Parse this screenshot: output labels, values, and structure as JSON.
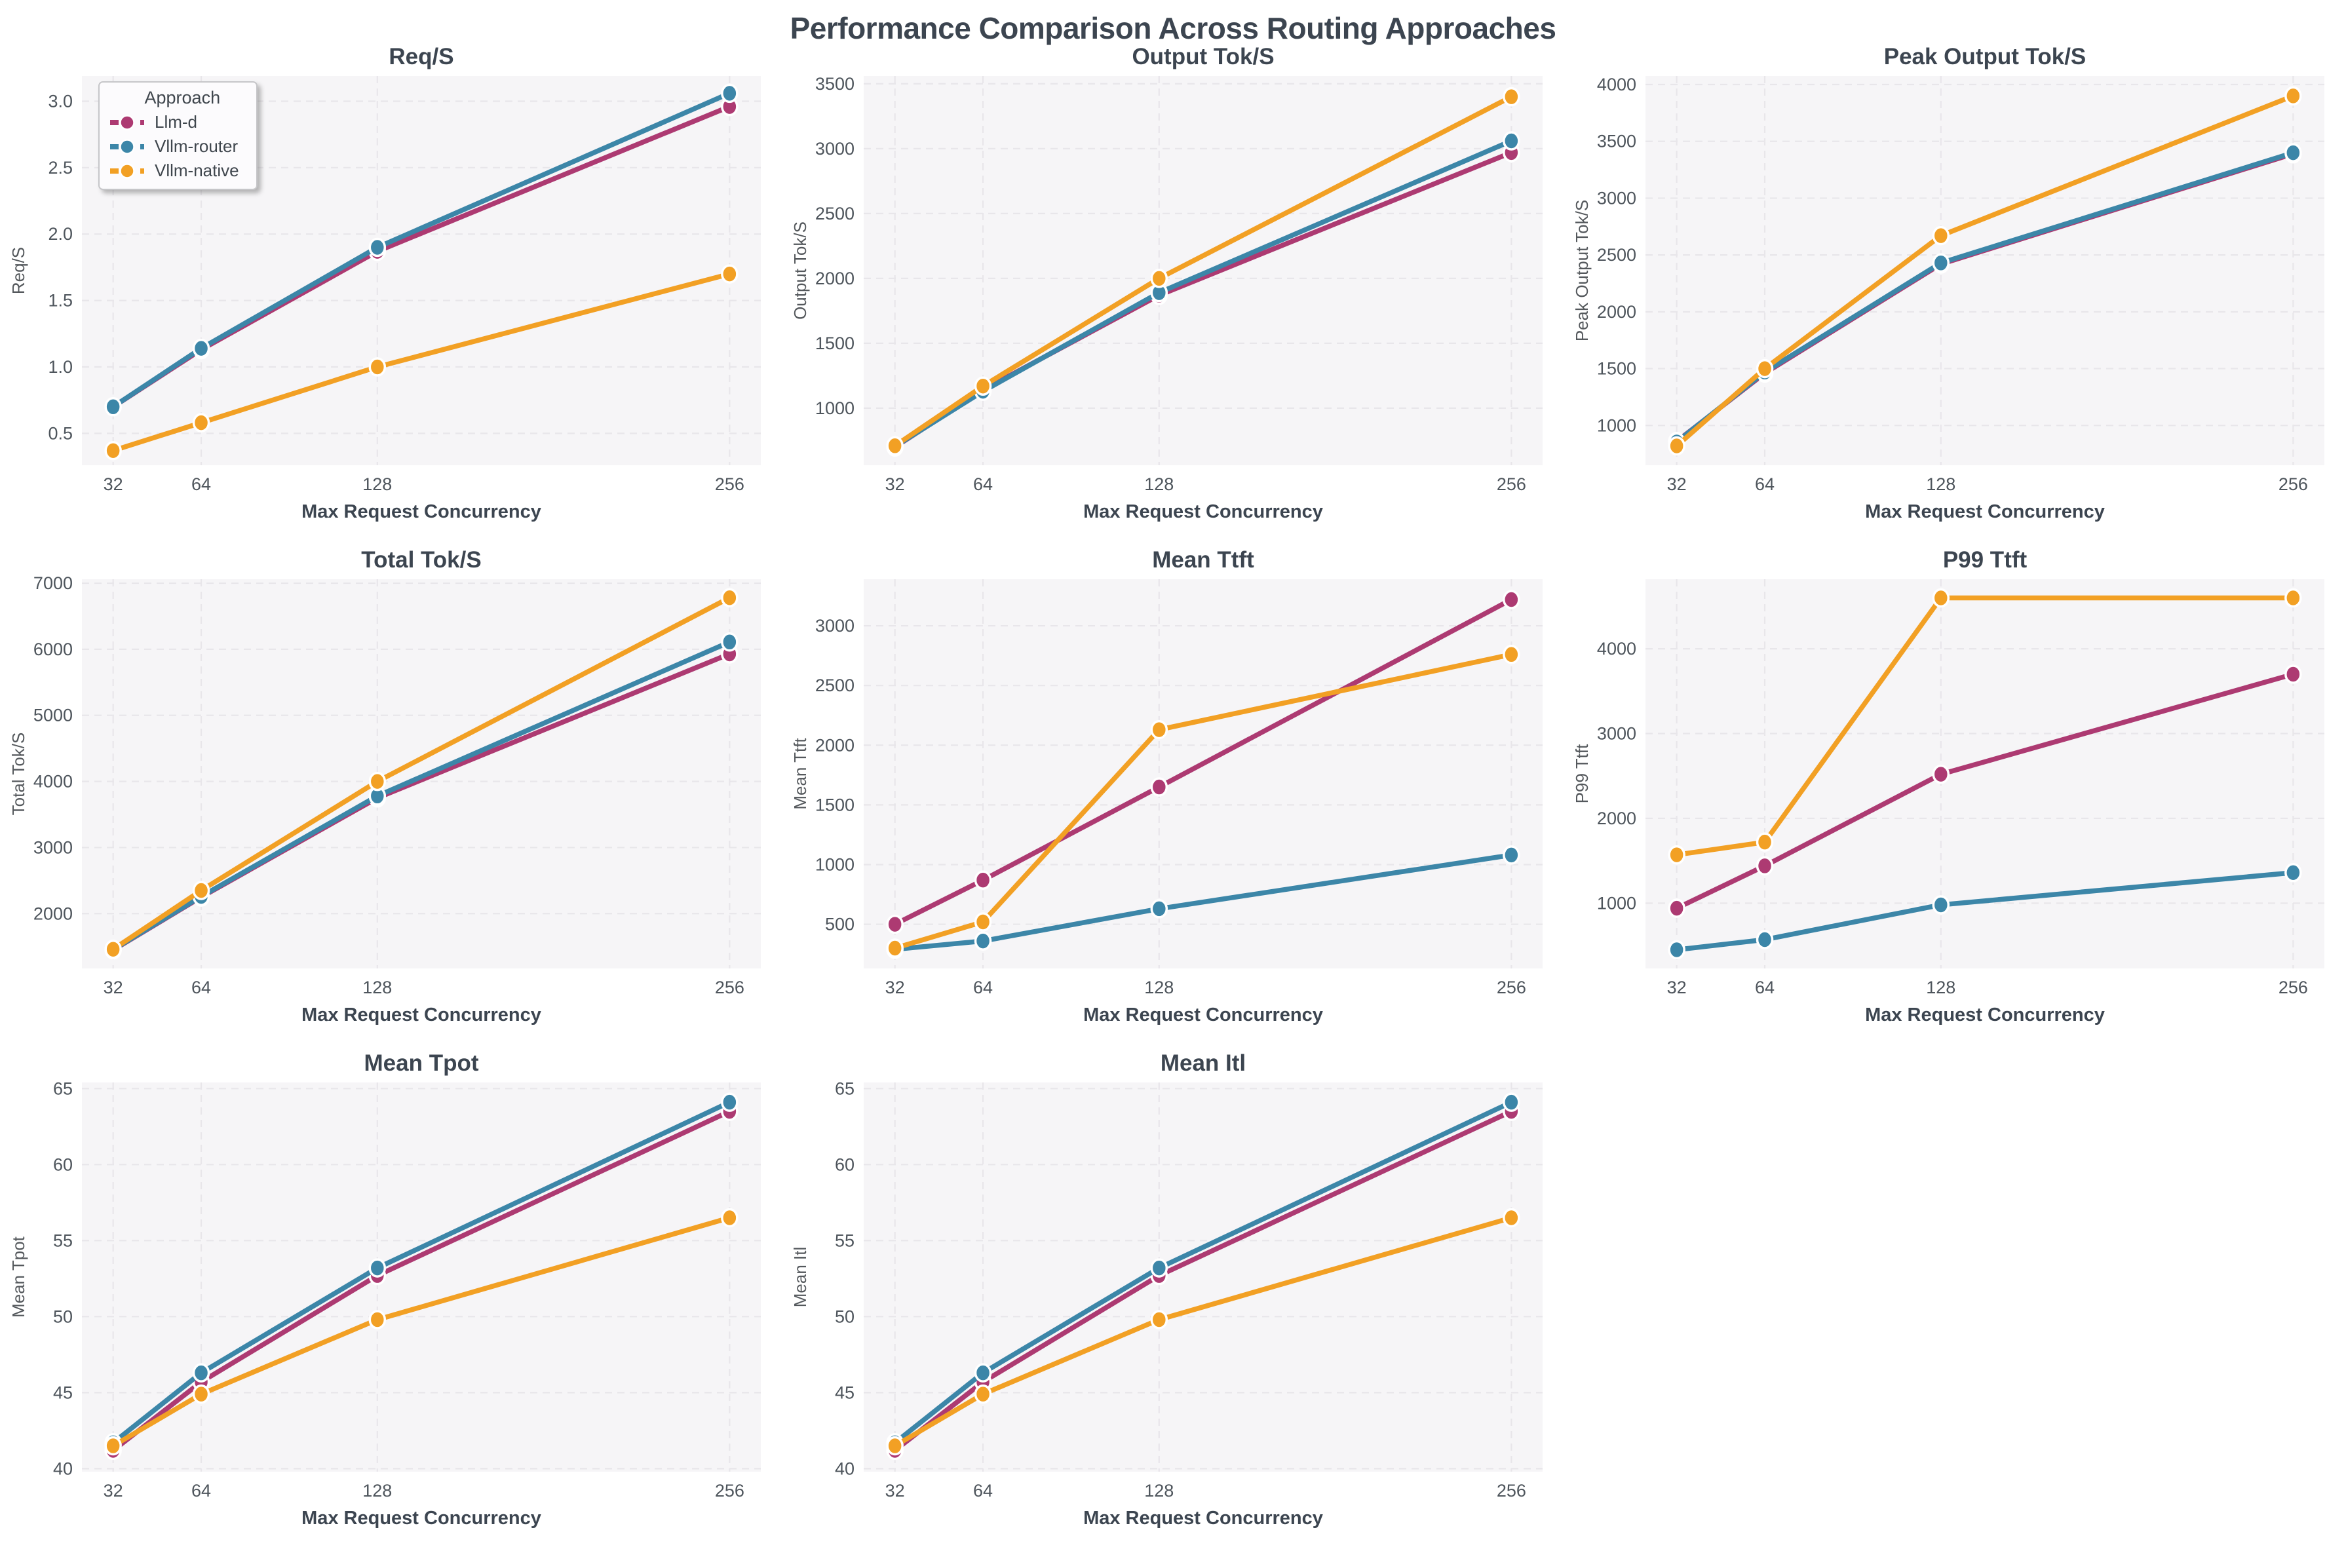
{
  "title": "Performance Comparison Across Routing Approaches",
  "xlabel": "Max Request Concurrency",
  "legend": {
    "title": "Approach",
    "position": "upper-left-first-subplot",
    "entries": [
      {
        "label": "Llm-d",
        "color": "#ad3a72"
      },
      {
        "label": "Vllm-router",
        "color": "#3c86a8"
      },
      {
        "label": "Vllm-native",
        "color": "#f2a024"
      }
    ]
  },
  "style": {
    "plot_bg": "#f6f5f7",
    "grid_color": "#e8e6ea",
    "grid_on": true,
    "title_color": "#3c4550",
    "tick_color": "#4e555c",
    "axis_label_color": "#3c4550",
    "ylabel_color": "#54585c"
  },
  "chart_data": [
    {
      "type": "line",
      "title": "Req/S",
      "ylabel": "Req/S",
      "xlabel": "Max Request Concurrency",
      "x": [
        32,
        64,
        128,
        256
      ],
      "series": [
        {
          "name": "Llm-d",
          "values": [
            0.7,
            1.13,
            1.87,
            2.96
          ]
        },
        {
          "name": "Vllm-router",
          "values": [
            0.7,
            1.14,
            1.9,
            3.06
          ]
        },
        {
          "name": "Vllm-native",
          "values": [
            0.37,
            0.58,
            1.0,
            1.7
          ]
        }
      ],
      "y_ticks": [
        0.5,
        1.0,
        1.5,
        2.0,
        2.5,
        3.0
      ],
      "tick_decimals": 1,
      "ylim": [
        0.26,
        3.19
      ],
      "show_legend": true
    },
    {
      "type": "line",
      "title": "Output Tok/S",
      "ylabel": "Output Tok/S",
      "xlabel": "Max Request Concurrency",
      "x": [
        32,
        64,
        128,
        256
      ],
      "series": [
        {
          "name": "Llm-d",
          "values": [
            700,
            1140,
            1870,
            2970
          ]
        },
        {
          "name": "Vllm-router",
          "values": [
            705,
            1130,
            1890,
            3060
          ]
        },
        {
          "name": "Vllm-native",
          "values": [
            710,
            1170,
            2000,
            3400
          ]
        }
      ],
      "y_ticks": [
        1000,
        1500,
        2000,
        2500,
        3000,
        3500
      ],
      "tick_decimals": 0,
      "ylim": [
        560,
        3560
      ],
      "show_legend": false
    },
    {
      "type": "line",
      "title": "Peak Output Tok/S",
      "ylabel": "Peak Output Tok/S",
      "xlabel": "Max Request Concurrency",
      "x": [
        32,
        64,
        128,
        256
      ],
      "series": [
        {
          "name": "Llm-d",
          "values": [
            860,
            1460,
            2420,
            3390
          ]
        },
        {
          "name": "Vllm-router",
          "values": [
            855,
            1470,
            2430,
            3400
          ]
        },
        {
          "name": "Vllm-native",
          "values": [
            820,
            1500,
            2670,
            3900
          ]
        }
      ],
      "y_ticks": [
        1000,
        1500,
        2000,
        2500,
        3000,
        3500,
        4000
      ],
      "tick_decimals": 0,
      "ylim": [
        650,
        4075
      ],
      "show_legend": false
    },
    {
      "type": "line",
      "title": "Total Tok/S",
      "ylabel": "Total Tok/S",
      "xlabel": "Max Request Concurrency",
      "x": [
        32,
        64,
        128,
        256
      ],
      "series": [
        {
          "name": "Llm-d",
          "values": [
            1450,
            2250,
            3750,
            5930
          ]
        },
        {
          "name": "Vllm-router",
          "values": [
            1455,
            2260,
            3780,
            6110
          ]
        },
        {
          "name": "Vllm-native",
          "values": [
            1460,
            2350,
            4000,
            6780
          ]
        }
      ],
      "y_ticks": [
        2000,
        3000,
        4000,
        5000,
        6000,
        7000
      ],
      "tick_decimals": 0,
      "ylim": [
        1170,
        7060
      ],
      "show_legend": false
    },
    {
      "type": "line",
      "title": "Mean Ttft",
      "ylabel": "Mean Ttft",
      "xlabel": "Max Request Concurrency",
      "x": [
        32,
        64,
        128,
        256
      ],
      "series": [
        {
          "name": "Llm-d",
          "values": [
            500,
            870,
            1650,
            3220
          ]
        },
        {
          "name": "Vllm-router",
          "values": [
            290,
            360,
            630,
            1080
          ]
        },
        {
          "name": "Vllm-native",
          "values": [
            300,
            520,
            2130,
            2760
          ]
        }
      ],
      "y_ticks": [
        500,
        1000,
        1500,
        2000,
        2500,
        3000
      ],
      "tick_decimals": 0,
      "ylim": [
        130,
        3390
      ],
      "show_legend": false
    },
    {
      "type": "line",
      "title": "P99 Ttft",
      "ylabel": "P99 Ttft",
      "xlabel": "Max Request Concurrency",
      "x": [
        32,
        64,
        128,
        256
      ],
      "series": [
        {
          "name": "Llm-d",
          "values": [
            940,
            1440,
            2520,
            3700
          ]
        },
        {
          "name": "Vllm-router",
          "values": [
            450,
            570,
            980,
            1360
          ]
        },
        {
          "name": "Vllm-native",
          "values": [
            1570,
            1720,
            4600,
            4600
          ]
        }
      ],
      "y_ticks": [
        1000,
        2000,
        3000,
        4000
      ],
      "tick_decimals": 0,
      "ylim": [
        230,
        4820
      ],
      "show_legend": false
    },
    {
      "type": "line",
      "title": "Mean Tpot",
      "ylabel": "Mean Tpot",
      "xlabel": "Max Request Concurrency",
      "x": [
        32,
        64,
        128,
        256
      ],
      "series": [
        {
          "name": "Llm-d",
          "values": [
            41.2,
            45.7,
            52.7,
            63.5
          ]
        },
        {
          "name": "Vllm-router",
          "values": [
            41.7,
            46.3,
            53.2,
            64.1
          ]
        },
        {
          "name": "Vllm-native",
          "values": [
            41.5,
            44.9,
            49.8,
            56.5
          ]
        }
      ],
      "y_ticks": [
        40,
        45,
        50,
        55,
        60,
        65
      ],
      "tick_decimals": 0,
      "ylim": [
        39.8,
        65.4
      ],
      "show_legend": false
    },
    {
      "type": "line",
      "title": "Mean Itl",
      "ylabel": "Mean Itl",
      "xlabel": "Max Request Concurrency",
      "x": [
        32,
        64,
        128,
        256
      ],
      "series": [
        {
          "name": "Llm-d",
          "values": [
            41.2,
            45.7,
            52.7,
            63.5
          ]
        },
        {
          "name": "Vllm-router",
          "values": [
            41.7,
            46.3,
            53.2,
            64.1
          ]
        },
        {
          "name": "Vllm-native",
          "values": [
            41.5,
            44.9,
            49.8,
            56.5
          ]
        }
      ],
      "y_ticks": [
        40,
        45,
        50,
        55,
        60,
        65
      ],
      "tick_decimals": 0,
      "ylim": [
        39.8,
        65.4
      ],
      "show_legend": false
    }
  ]
}
